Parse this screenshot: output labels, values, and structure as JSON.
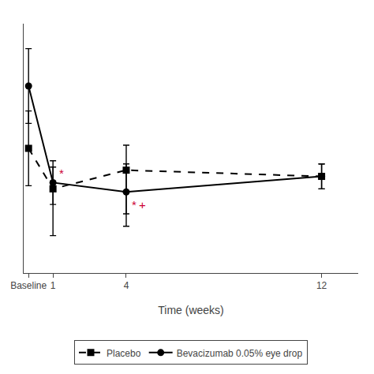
{
  "chart_data": {
    "type": "line",
    "xlabel": "Time (weeks)",
    "series": [
      {
        "name": "Placebo",
        "color": "#000000",
        "marker": "square",
        "line_style": "dash",
        "x": [
          0,
          1,
          4,
          12
        ],
        "values": [
          55,
          42,
          48,
          46
        ],
        "error_lower": [
          12,
          15,
          14,
          4
        ],
        "error_upper": [
          12,
          7,
          8,
          4
        ]
      },
      {
        "name": "Bevacizumab 0.05% eye drop",
        "color": "#000000",
        "marker": "circle",
        "line_style": "solid",
        "x": [
          0,
          1,
          4,
          12
        ],
        "values": [
          75,
          44,
          41,
          46
        ],
        "error_lower": [
          12,
          7,
          11,
          4
        ],
        "error_upper": [
          12,
          7,
          9,
          4
        ]
      }
    ],
    "annotations": [
      {
        "x": 1.2,
        "y": 47,
        "text": "*",
        "color": "#cc0033"
      },
      {
        "x": 4.15,
        "y": 37,
        "text": "*",
        "color": "#cc0033"
      },
      {
        "x": 4.45,
        "y": 37,
        "text": "+",
        "color": "#cc0033"
      }
    ],
    "xlim": [
      -0.2,
      13.5
    ],
    "xticks": [
      {
        "value": 0,
        "label": "Baseline"
      },
      1,
      4,
      12
    ],
    "ylim": [
      15,
      95
    ],
    "tick_labels": "x",
    "grid": false,
    "legend": "bottom"
  }
}
